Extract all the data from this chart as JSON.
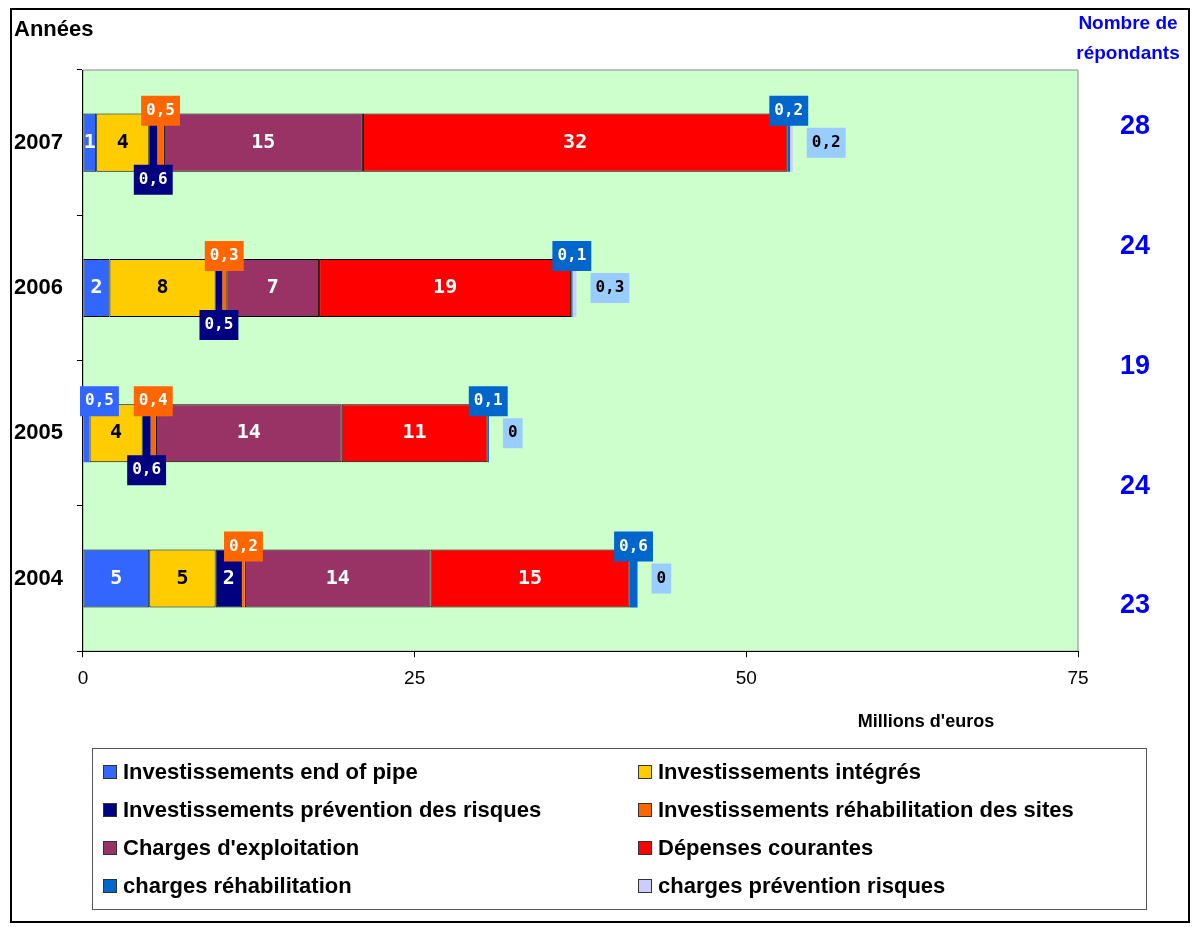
{
  "chart_data": {
    "type": "bar",
    "orientation": "horizontal",
    "stacked": true,
    "grid": false,
    "legend": "bottom",
    "ylabel": "Années",
    "xlabel": "Millions d'euros",
    "annotations": [
      "Nombre de répondants",
      "28",
      "24",
      "19",
      "24",
      "23"
    ],
    "categories": [
      "2007",
      "2006",
      "2005",
      "2004"
    ],
    "xlim": [
      0,
      75
    ],
    "xticks": [
      0,
      25,
      50,
      75
    ],
    "series": [
      {
        "name": "Investissements end of pipe",
        "color": "#3366ff",
        "values": [
          1,
          2,
          0.5,
          5
        ],
        "value_labels": [
          "1",
          "2",
          "0,5",
          "5"
        ]
      },
      {
        "name": "Investissements intégrés",
        "color": "#ffcc00",
        "values": [
          4,
          8,
          4,
          5
        ],
        "value_labels": [
          "4",
          "8",
          "4",
          "5"
        ]
      },
      {
        "name": "Investissements prévention des risques",
        "color": "#000080",
        "values": [
          0.6,
          0.5,
          0.6,
          2
        ],
        "value_labels": [
          "0,6",
          "0,5",
          "0,6",
          "2"
        ]
      },
      {
        "name": "Investissements réhabilitation des sites",
        "color": "#ff6600",
        "values": [
          0.5,
          0.3,
          0.4,
          0.2
        ],
        "value_labels": [
          "0,5",
          "0,3",
          "0,4",
          "0,2"
        ]
      },
      {
        "name": "Charges d'exploitation",
        "color": "#993366",
        "values": [
          15,
          7,
          14,
          14
        ],
        "value_labels": [
          "15",
          "7",
          "14",
          "14"
        ]
      },
      {
        "name": "Dépenses courantes",
        "color": "#ff0000",
        "values": [
          32,
          19,
          11,
          15
        ],
        "value_labels": [
          "32",
          "19",
          "11",
          "15"
        ]
      },
      {
        "name": "charges réhabilitation",
        "color": "#0066cc",
        "values": [
          0.2,
          0.1,
          0.1,
          0.6
        ],
        "value_labels": [
          "0,2",
          "0,1",
          "0,1",
          "0,6"
        ]
      },
      {
        "name": "charges prévention risques",
        "color": "#ccccff",
        "values": [
          0.2,
          0.3,
          0,
          0
        ],
        "value_labels": [
          "0,2",
          "0,3",
          "0",
          "0"
        ]
      }
    ]
  }
}
